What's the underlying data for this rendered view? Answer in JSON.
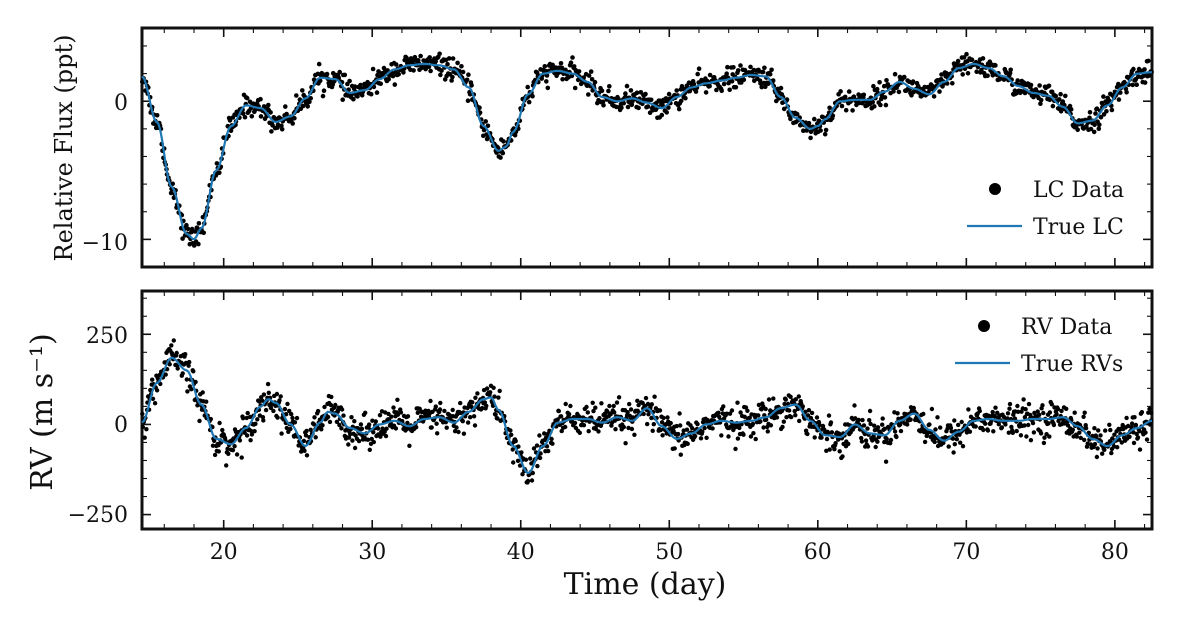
{
  "colors": {
    "data": "#000000",
    "model": "#1f77b4"
  },
  "shared": {
    "xlabel": "Time (day)",
    "xlim": [
      14.5,
      82.5
    ],
    "xticks": [
      "20",
      "30",
      "40",
      "50",
      "60",
      "70",
      "80"
    ]
  },
  "chart_data": [
    {
      "type": "line",
      "panel": "top",
      "ylabel": "Relative Flux (ppt)",
      "ylim": [
        -12,
        5.3
      ],
      "yticks": [
        "0",
        "−10"
      ],
      "legend_position": "bottom-right",
      "series": [
        {
          "name": "LC Data",
          "kind": "scatter"
        },
        {
          "name": "True LC",
          "kind": "line"
        }
      ],
      "x": [
        14.5,
        15.5,
        16.5,
        17.5,
        18.0,
        18.5,
        19.5,
        20.5,
        21.5,
        22.5,
        23.5,
        24.5,
        25.5,
        26.5,
        27.5,
        28.5,
        29.5,
        30.5,
        31.5,
        32.5,
        33.5,
        34.5,
        35.5,
        36.5,
        37.5,
        38.5,
        39.0,
        39.5,
        40.5,
        41.5,
        42.5,
        43.5,
        44.5,
        45.5,
        46.5,
        47.5,
        48.5,
        49.5,
        50.5,
        51.5,
        52.5,
        53.5,
        54.5,
        55.5,
        56.5,
        57.5,
        58.5,
        59.5,
        60.0,
        60.5,
        61.5,
        62.5,
        63.5,
        64.5,
        65.5,
        66.5,
        67.5,
        68.5,
        69.5,
        70.5,
        71.5,
        72.5,
        73.5,
        74.5,
        75.5,
        76.5,
        77.5,
        78.5,
        79.5,
        80.5,
        81.5,
        82.5
      ],
      "y": [
        1.8,
        -1.5,
        -6.2,
        -9.6,
        -10.0,
        -9.2,
        -5.0,
        -1.8,
        -0.3,
        -0.5,
        -1.5,
        -1.1,
        0.2,
        1.7,
        1.6,
        0.6,
        0.8,
        1.6,
        2.3,
        2.6,
        2.7,
        2.6,
        2.3,
        1.0,
        -1.8,
        -3.6,
        -3.3,
        -2.2,
        0.5,
        2.0,
        2.2,
        2.0,
        1.4,
        0.3,
        0.0,
        0.2,
        -0.1,
        -0.5,
        0.3,
        1.0,
        1.3,
        1.5,
        1.7,
        1.9,
        1.8,
        0.3,
        -1.2,
        -2.0,
        -1.8,
        -1.3,
        0.0,
        0.1,
        0.1,
        0.7,
        1.4,
        0.9,
        0.5,
        1.4,
        2.4,
        2.7,
        2.4,
        1.8,
        1.1,
        0.6,
        0.4,
        -0.4,
        -1.6,
        -1.4,
        -0.3,
        1.0,
        2.0,
        2.1
      ]
    },
    {
      "type": "line",
      "panel": "bottom",
      "ylabel": "RV (m s⁻¹)",
      "ylim": [
        -290,
        370
      ],
      "yticks": [
        "250",
        "0",
        "−250"
      ],
      "legend_position": "top-right",
      "series": [
        {
          "name": "RV Data",
          "kind": "scatter"
        },
        {
          "name": "True RVs",
          "kind": "line"
        }
      ],
      "x": [
        14.5,
        15.5,
        16.5,
        17.5,
        18.5,
        19.5,
        20.5,
        21.5,
        22.5,
        23.0,
        23.5,
        24.5,
        25.5,
        26.5,
        27.0,
        27.5,
        28.5,
        29.5,
        30.5,
        31.5,
        32.5,
        33.5,
        34.5,
        35.5,
        36.5,
        37.5,
        38.0,
        38.5,
        39.5,
        40.5,
        41.5,
        42.5,
        43.5,
        44.5,
        45.5,
        46.5,
        47.5,
        48.5,
        49.5,
        50.5,
        51.5,
        52.5,
        53.5,
        54.5,
        55.5,
        56.5,
        57.5,
        58.5,
        59.5,
        60.5,
        61.5,
        62.5,
        63.5,
        64.5,
        65.5,
        66.5,
        67.5,
        68.5,
        69.5,
        70.5,
        71.5,
        72.5,
        73.5,
        74.5,
        75.5,
        76.5,
        77.5,
        78.5,
        79.5,
        80.5,
        81.5,
        82.5
      ],
      "y": [
        5,
        115,
        185,
        150,
        55,
        -40,
        -55,
        -10,
        50,
        70,
        60,
        0,
        -60,
        5,
        35,
        30,
        -10,
        -25,
        0,
        10,
        -5,
        15,
        20,
        5,
        35,
        70,
        75,
        40,
        -60,
        -135,
        -60,
        5,
        15,
        15,
        5,
        20,
        10,
        45,
        -5,
        -40,
        -25,
        0,
        10,
        5,
        10,
        20,
        45,
        55,
        10,
        -30,
        -35,
        0,
        -25,
        -30,
        10,
        30,
        -15,
        -45,
        -20,
        10,
        15,
        10,
        10,
        15,
        15,
        20,
        -5,
        -40,
        -60,
        -30,
        -10,
        10
      ]
    }
  ]
}
